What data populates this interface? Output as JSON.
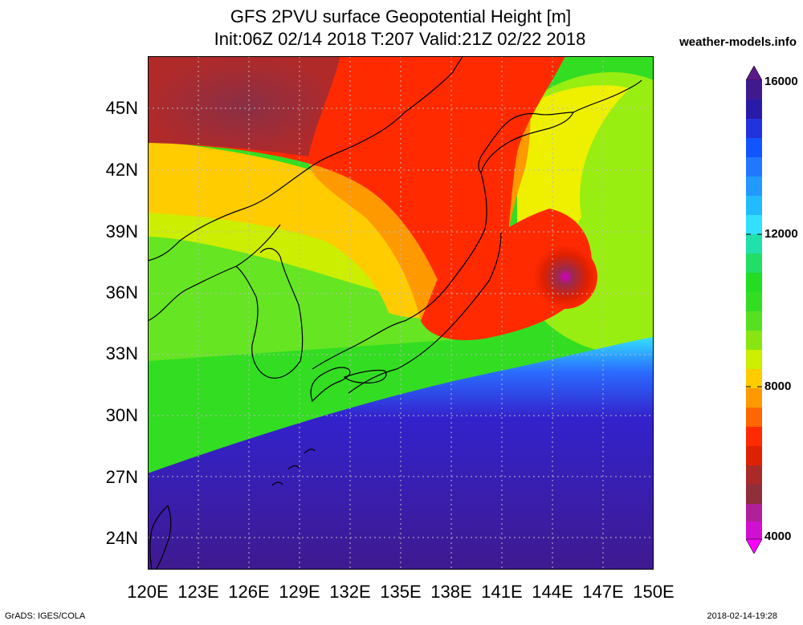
{
  "title_line1": "GFS 2PVU surface Geopotential Height [m]",
  "title_line2": "Init:06Z 02/14 2018 T:207 Valid:21Z 02/22 2018",
  "site": "weather-models.info",
  "lat_labels": [
    "45N",
    "42N",
    "39N",
    "36N",
    "33N",
    "30N",
    "27N",
    "24N"
  ],
  "lon_labels": [
    "120E",
    "123E",
    "126E",
    "129E",
    "132E",
    "135E",
    "138E",
    "141E",
    "144E",
    "147E",
    "150E"
  ],
  "colorbar_labels": [
    "16000",
    "12000",
    "8000",
    "4000"
  ],
  "colors": {
    "purple": "#3f1a8f",
    "blue": "#2233dd",
    "cyan": "#33e0ff",
    "green": "#33dd22",
    "yellow": "#eef000",
    "orange": "#ff9900",
    "red": "#ff2400",
    "darkred": "#8f2f3a",
    "magenta": "#e800e8"
  },
  "footer_left": "GrADS: IGES/COLA",
  "footer_right": "2018-02-14-19:28"
}
